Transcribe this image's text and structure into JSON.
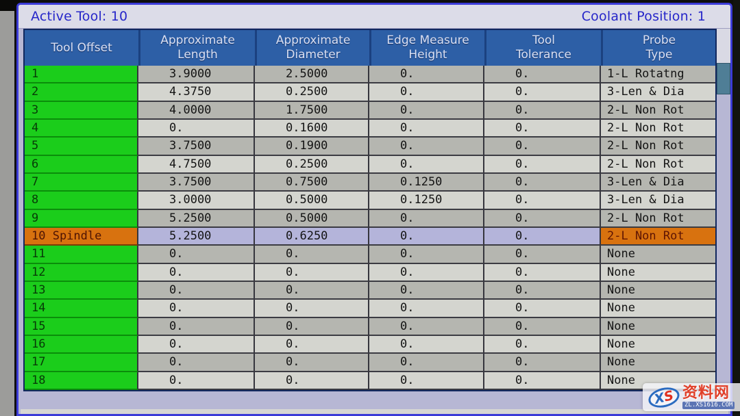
{
  "status_bar": {
    "active_tool": "Active Tool: 10",
    "coolant_position": "Coolant Position: 1"
  },
  "table": {
    "columns": [
      {
        "key": "offset",
        "label": "Tool Offset"
      },
      {
        "key": "length",
        "label": "Approximate\nLength"
      },
      {
        "key": "diameter",
        "label": "Approximate\nDiameter"
      },
      {
        "key": "edge",
        "label": "Edge Measure\nHeight"
      },
      {
        "key": "tolerance",
        "label": "Tool\nTolerance"
      },
      {
        "key": "probe",
        "label": "Probe\nType"
      }
    ],
    "rows": [
      {
        "offset": "1",
        "length": "3.9000",
        "diameter": "2.5000",
        "edge": "0.",
        "tolerance": "0.",
        "probe": "1-L Rotatng",
        "active": false
      },
      {
        "offset": "2",
        "length": "4.3750",
        "diameter": "0.2500",
        "edge": "0.",
        "tolerance": "0.",
        "probe": "3-Len & Dia",
        "active": false
      },
      {
        "offset": "3",
        "length": "4.0000",
        "diameter": "1.7500",
        "edge": "0.",
        "tolerance": "0.",
        "probe": "2-L Non Rot",
        "active": false
      },
      {
        "offset": "4",
        "length": "0.",
        "diameter": "0.1600",
        "edge": "0.",
        "tolerance": "0.",
        "probe": "2-L Non Rot",
        "active": false
      },
      {
        "offset": "5",
        "length": "3.7500",
        "diameter": "0.1900",
        "edge": "0.",
        "tolerance": "0.",
        "probe": "2-L Non Rot",
        "active": false
      },
      {
        "offset": "6",
        "length": "4.7500",
        "diameter": "0.2500",
        "edge": "0.",
        "tolerance": "0.",
        "probe": "2-L Non Rot",
        "active": false
      },
      {
        "offset": "7",
        "length": "3.7500",
        "diameter": "0.7500",
        "edge": "0.1250",
        "tolerance": "0.",
        "probe": "3-Len & Dia",
        "active": false
      },
      {
        "offset": "8",
        "length": "3.0000",
        "diameter": "0.5000",
        "edge": "0.1250",
        "tolerance": "0.",
        "probe": "3-Len & Dia",
        "active": false
      },
      {
        "offset": "9",
        "length": "5.2500",
        "diameter": "0.5000",
        "edge": "0.",
        "tolerance": "0.",
        "probe": "2-L Non Rot",
        "active": false
      },
      {
        "offset": "10 Spindle",
        "length": "5.2500",
        "diameter": "0.6250",
        "edge": "0.",
        "tolerance": "0.",
        "probe": "2-L Non Rot",
        "active": true
      },
      {
        "offset": "11",
        "length": "0.",
        "diameter": "0.",
        "edge": "0.",
        "tolerance": "0.",
        "probe": "None",
        "active": false
      },
      {
        "offset": "12",
        "length": "0.",
        "diameter": "0.",
        "edge": "0.",
        "tolerance": "0.",
        "probe": "None",
        "active": false
      },
      {
        "offset": "13",
        "length": "0.",
        "diameter": "0.",
        "edge": "0.",
        "tolerance": "0.",
        "probe": "None",
        "active": false
      },
      {
        "offset": "14",
        "length": "0.",
        "diameter": "0.",
        "edge": "0.",
        "tolerance": "0.",
        "probe": "None",
        "active": false
      },
      {
        "offset": "15",
        "length": "0.",
        "diameter": "0.",
        "edge": "0.",
        "tolerance": "0.",
        "probe": "None",
        "active": false
      },
      {
        "offset": "16",
        "length": "0.",
        "diameter": "0.",
        "edge": "0.",
        "tolerance": "0.",
        "probe": "None",
        "active": false
      },
      {
        "offset": "17",
        "length": "0.",
        "diameter": "0.",
        "edge": "0.",
        "tolerance": "0.",
        "probe": "None",
        "active": false
      },
      {
        "offset": "18",
        "length": "0.",
        "diameter": "0.",
        "edge": "0.",
        "tolerance": "0.",
        "probe": "None",
        "active": false
      }
    ]
  },
  "colors": {
    "offset_green": "#1bcd1b",
    "active_cell_orange": "#d8720f",
    "active_row_lavender": "#b4b4da",
    "header_blue": "#2d5fa6",
    "status_text_blue": "#2626c9",
    "panel_border_blue": "#3c3cd8"
  },
  "watermark": {
    "logo_x": "X",
    "logo_s": "S",
    "site_name": "资料网",
    "site_url": "ZL.XS1616.COM"
  }
}
